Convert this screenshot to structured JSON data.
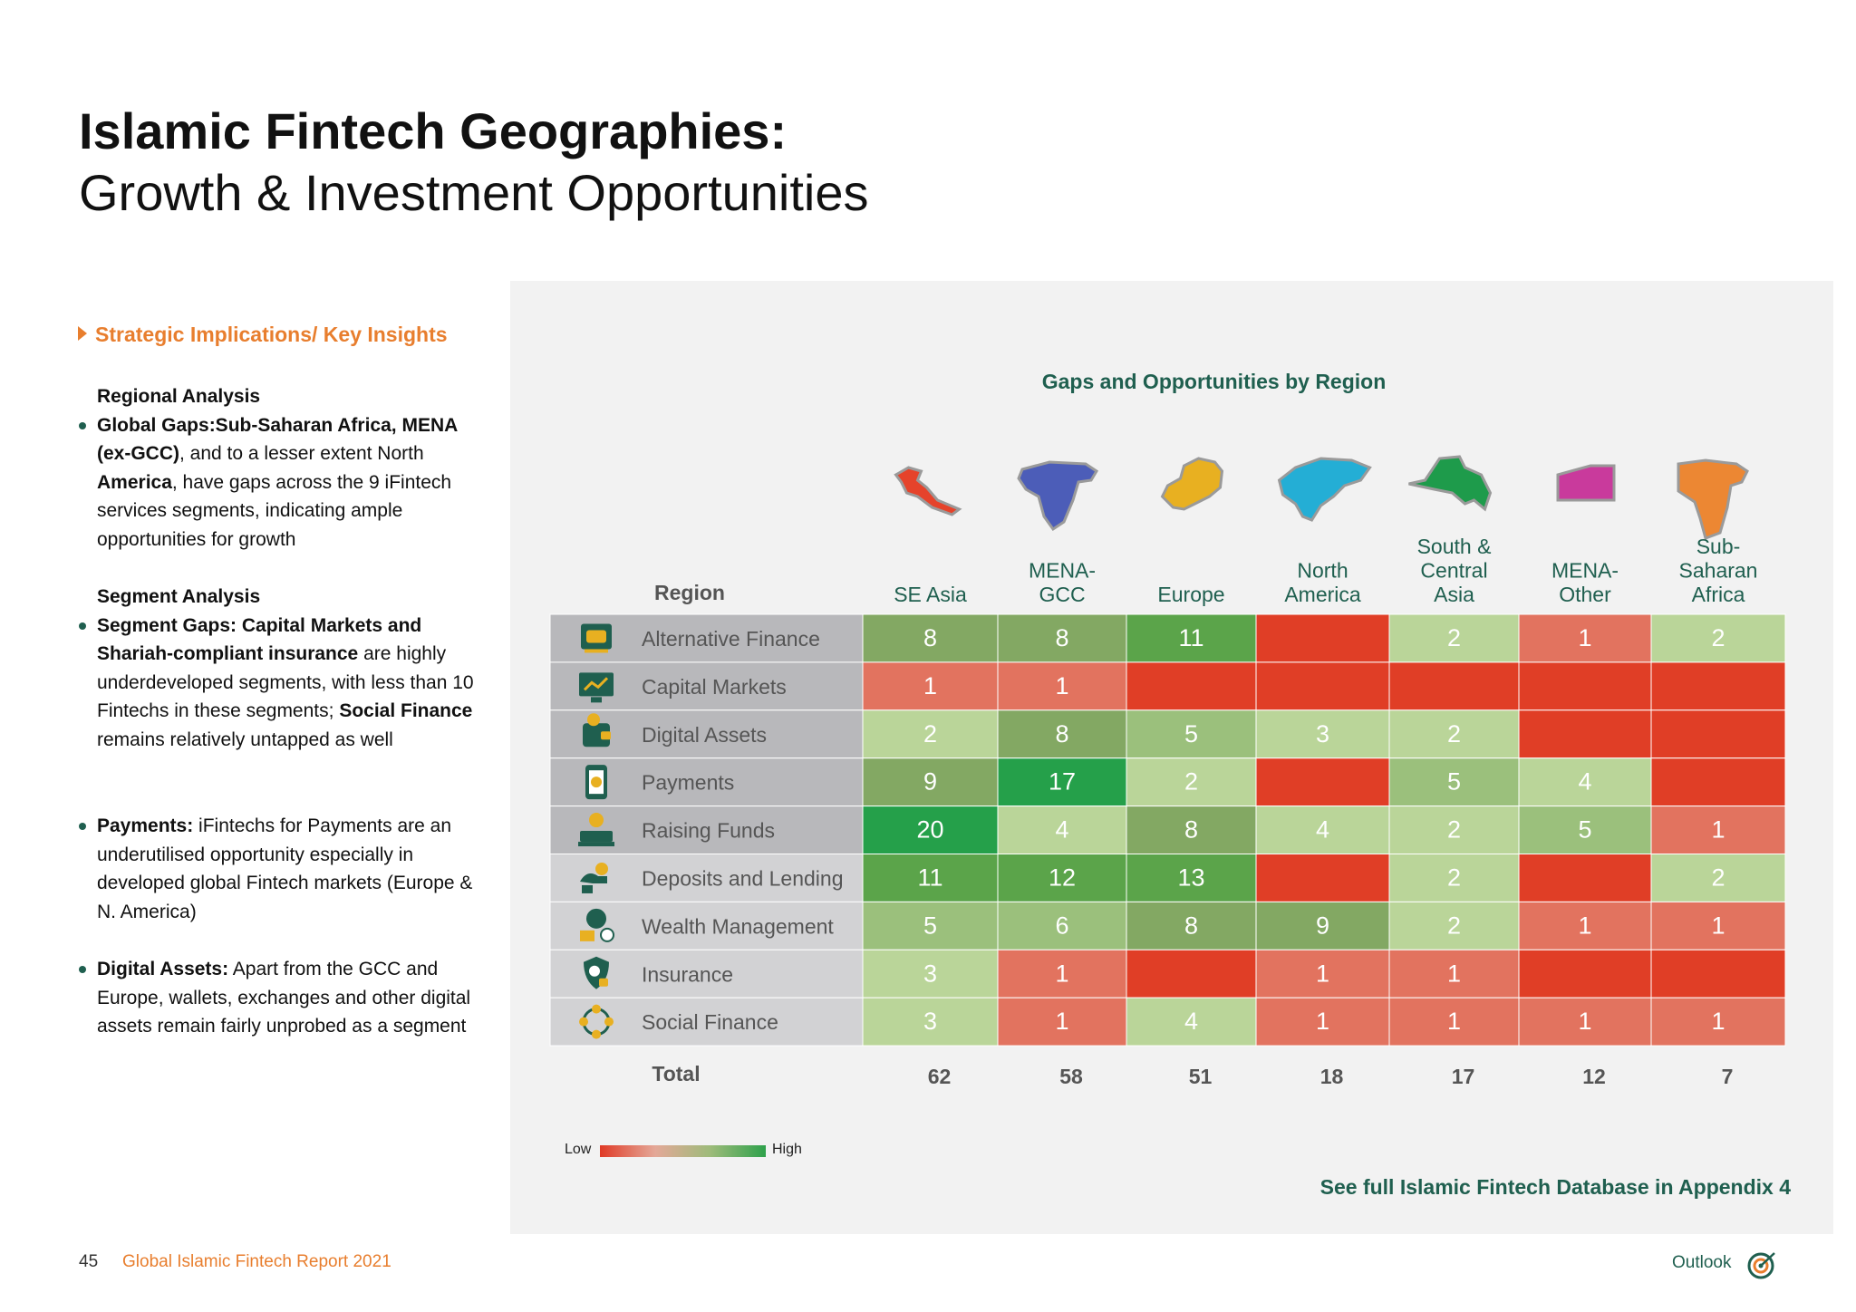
{
  "page": {
    "title_bold": "Islamic Fintech Geographies:",
    "title_regular": "Growth & Investment Opportunities",
    "page_number": "45",
    "report_name": "Global Islamic Fintech Report 2021",
    "outlook_label": "Outlook",
    "appendix_link": "See full Islamic Fintech Database in Appendix 4"
  },
  "insights": {
    "heading": "Strategic Implications/ Key Insights",
    "regional_title": "Regional Analysis",
    "regional_b1": "Global Gaps:Sub-Saharan Africa, MENA (ex-GCC)",
    "regional_t1": ", and to a lesser extent North ",
    "regional_b2": "America",
    "regional_t2": ", have gaps across the 9 iFintech services segments, indicating ample opportunities for growth",
    "segment_title": "Segment Analysis",
    "segment_b1": "Segment Gaps: Capital Markets and Shariah-compliant insurance",
    "segment_t1": " are highly underdeveloped segments, with less than 10 Fintechs in these segments; ",
    "segment_b2": "Social Finance",
    "segment_t2": " remains relatively untapped as well",
    "payments_b": "Payments:",
    "payments_t": " iFintechs for Payments are an underutilised opportunity especially in developed global Fintech markets (Europe & N. America)",
    "digital_b": "Digital Assets:",
    "digital_t": " Apart from the GCC and Europe, wallets, exchanges and other digital assets remain fairly unprobed as a segment"
  },
  "chart_data": {
    "type": "heatmap",
    "title": "Gaps and Opportunities by Region",
    "row_header": "Region",
    "total_label": "Total",
    "legend_low": "Low",
    "legend_high": "High",
    "columns": [
      {
        "name": "SE Asia",
        "lines": [
          "SE Asia"
        ],
        "map_color": "#E5432B"
      },
      {
        "name": "MENA-GCC",
        "lines": [
          "MENA-",
          "GCC"
        ],
        "map_color": "#4C5DB8"
      },
      {
        "name": "Europe",
        "lines": [
          "Europe"
        ],
        "map_color": "#E8B021"
      },
      {
        "name": "North America",
        "lines": [
          "North",
          "America"
        ],
        "map_color": "#24AED5"
      },
      {
        "name": "South & Central Asia",
        "lines": [
          "South &",
          "Central",
          "Asia"
        ],
        "map_color": "#1E9B4B"
      },
      {
        "name": "MENA-Other",
        "lines": [
          "MENA-",
          "Other"
        ],
        "map_color": "#C93A9C"
      },
      {
        "name": "Sub-Saharan Africa",
        "lines": [
          "Sub-",
          "Saharan",
          "Africa"
        ],
        "map_color": "#EC8733"
      }
    ],
    "rows": [
      {
        "name": "Alternative Finance",
        "icon": "alternative-finance-icon",
        "values": [
          8,
          8,
          11,
          0,
          2,
          1,
          2
        ]
      },
      {
        "name": "Capital Markets",
        "icon": "capital-markets-icon",
        "values": [
          1,
          1,
          0,
          0,
          0,
          0,
          0
        ]
      },
      {
        "name": "Digital Assets",
        "icon": "digital-assets-icon",
        "values": [
          2,
          8,
          5,
          3,
          2,
          0,
          0
        ]
      },
      {
        "name": "Payments",
        "icon": "payments-icon",
        "values": [
          9,
          17,
          2,
          0,
          5,
          4,
          0
        ]
      },
      {
        "name": "Raising Funds",
        "icon": "raising-funds-icon",
        "values": [
          20,
          4,
          8,
          4,
          2,
          5,
          1
        ]
      },
      {
        "name": "Deposits and Lending",
        "icon": "deposits-lending-icon",
        "values": [
          11,
          12,
          13,
          0,
          2,
          0,
          2
        ]
      },
      {
        "name": "Wealth Management",
        "icon": "wealth-management-icon",
        "values": [
          5,
          6,
          8,
          9,
          2,
          1,
          1
        ]
      },
      {
        "name": "Insurance",
        "icon": "insurance-icon",
        "values": [
          3,
          1,
          0,
          1,
          1,
          0,
          0
        ]
      },
      {
        "name": "Social Finance",
        "icon": "social-finance-icon",
        "values": [
          3,
          1,
          4,
          1,
          1,
          1,
          1
        ]
      }
    ],
    "totals": [
      62,
      58,
      51,
      18,
      17,
      12,
      7
    ],
    "colors": {
      "zero": "#E03E26",
      "one": "#E2735F",
      "low": "#BAD599",
      "mid": "#9BC07C",
      "high_mid": "#83A863",
      "high": "#5BA44A",
      "top": "#25A04A"
    }
  }
}
